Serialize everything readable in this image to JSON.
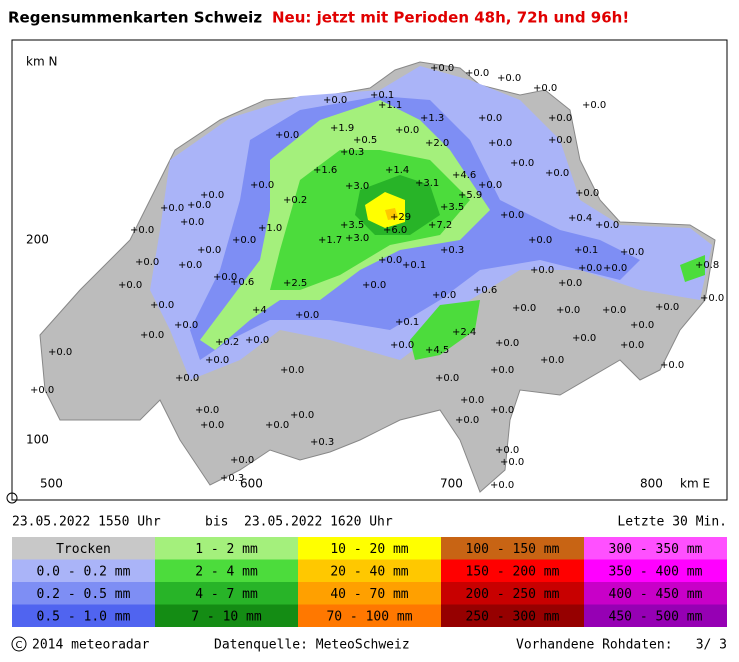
{
  "header": {
    "title": "Regensummenkarten Schweiz",
    "notice": "Neu: jetzt mit Perioden 48h, 72h und 96h!"
  },
  "map": {
    "north_label": "km N",
    "east_label": "km E",
    "y_ticks": [
      "200",
      "100"
    ],
    "x_ticks": [
      "500",
      "600",
      "700",
      "800"
    ],
    "stations": [
      "+0.0",
      "+0.0",
      "+0.0",
      "+0.0",
      "+0.1",
      "+0.0",
      "+1.1",
      "+1.3",
      "+0.0",
      "+0.0",
      "+0.0",
      "+1.9",
      "+0.5",
      "+0.0",
      "+2.0",
      "+0.0",
      "+0.0",
      "+0.3",
      "+0.0",
      "+0.0",
      "+0.0",
      "+1.6",
      "+1.4",
      "+3.1",
      "+4.6",
      "+5.9",
      "+0.0",
      "+3.0",
      "+0.0",
      "+0.0",
      "+0.2",
      "+0.0",
      "+0.0",
      "+0.0",
      "+3.5",
      "+29",
      "+0.0",
      "+0.4",
      "+0.0",
      "+3.5",
      "+0.0",
      "+0.0",
      "+1.0",
      "+7.2",
      "+6.0",
      "+1.7",
      "+3.0",
      "+0.0",
      "+0.0",
      "+0.3",
      "+0.1",
      "+0.0",
      "+0.0",
      "+0.0",
      "+0.1",
      "+0.0",
      "+0.0",
      "+0.0",
      "+0.0",
      "+0.0",
      "+0.0",
      "+0.8",
      "+0.0",
      "+0.6",
      "+2.5",
      "+0.0",
      "+0.6",
      "+0.0",
      "+0.0",
      "+0.0",
      "+0.0",
      "+4",
      "+0.0",
      "+0.0",
      "+0.0",
      "+0.0",
      "+0.0",
      "+0.1",
      "+2.4",
      "+0.0",
      "+0.0",
      "+0.0",
      "+0.2",
      "+0.0",
      "+0.0",
      "+0.0",
      "+0.0",
      "+0.0",
      "+0.0",
      "+4.5",
      "+0.0",
      "+0.0",
      "+0.0",
      "+0.0",
      "+0.0",
      "+0.0",
      "+0.0",
      "+0.0",
      "+0.0",
      "+0.0",
      "+0.0",
      "+0.0",
      "+0.0",
      "+0.0",
      "+0.0",
      "+0.3",
      "+0.0",
      "+0.0",
      "+0.0",
      "+0.0",
      "+0.3"
    ]
  },
  "period": {
    "start": "23.05.2022  1550 Uhr",
    "to_word": "bis",
    "end": "23.05.2022  1620 Uhr",
    "window": "Letzte 30 Min."
  },
  "legend": {
    "columns": [
      [
        {
          "label": "Trocken",
          "color": "#c8c8c8"
        },
        {
          "label": "0.0 - 0.2 mm",
          "color": "#aab4f8"
        },
        {
          "label": "0.2 - 0.5 mm",
          "color": "#7e8ef4"
        },
        {
          "label": "0.5 - 1.0 mm",
          "color": "#5064f0"
        }
      ],
      [
        {
          "label": "1 - 2 mm",
          "color": "#a4f07c"
        },
        {
          "label": "2 - 4 mm",
          "color": "#4cdc3c"
        },
        {
          "label": "4 - 7 mm",
          "color": "#28b428"
        },
        {
          "label": "7 - 10 mm",
          "color": "#148c14"
        }
      ],
      [
        {
          "label": "10 - 20 mm",
          "color": "#ffff00"
        },
        {
          "label": "20 - 40 mm",
          "color": "#ffc800"
        },
        {
          "label": "40 - 70 mm",
          "color": "#ffa000"
        },
        {
          "label": "70 - 100 mm",
          "color": "#ff7800"
        }
      ],
      [
        {
          "label": "100 - 150 mm",
          "color": "#c86414"
        },
        {
          "label": "150 - 200 mm",
          "color": "#ff0000"
        },
        {
          "label": "200 - 250 mm",
          "color": "#c80000"
        },
        {
          "label": "250 - 300 mm",
          "color": "#960000"
        }
      ],
      [
        {
          "label": "300 - 350 mm",
          "color": "#ff50ff"
        },
        {
          "label": "350 - 400 mm",
          "color": "#ff00ff"
        },
        {
          "label": "400 - 450 mm",
          "color": "#c800c8"
        },
        {
          "label": "450 - 500 mm",
          "color": "#9600b4"
        }
      ]
    ]
  },
  "footer": {
    "copyright": "2014  meteoradar",
    "source": "Datenquelle: MeteoSchweiz",
    "raw_label": "Vorhandene Rohdaten:",
    "raw_count": "3/  3"
  }
}
